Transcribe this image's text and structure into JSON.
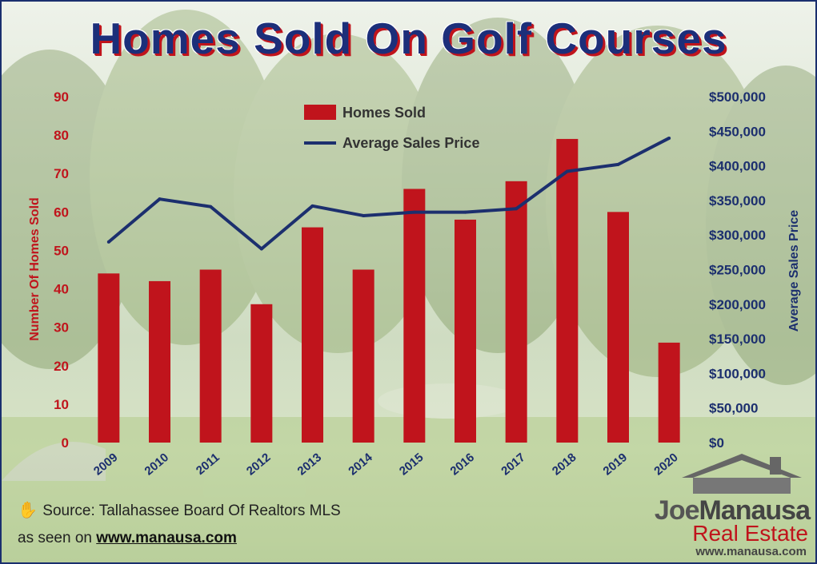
{
  "title": "Homes Sold On Golf Courses",
  "source_text": "Source: Tallahassee Board Of Realtors MLS",
  "seen_prefix": "as seen on",
  "seen_url": "www.manausa.com",
  "logo": {
    "name_part1": "Joe",
    "name_part2": "Manausa",
    "sub": "Real Estate",
    "url": "www.manausa.com"
  },
  "colors": {
    "bars": "#c0141c",
    "line": "#1c2f6e",
    "title": "#1c2f7a"
  },
  "chart_data": {
    "type": "bar",
    "categories": [
      "2009",
      "2010",
      "2011",
      "2012",
      "2013",
      "2014",
      "2015",
      "2016",
      "2017",
      "2018",
      "2019",
      "2020"
    ],
    "series": [
      {
        "name": "Homes Sold",
        "type": "bar",
        "axis": "left",
        "values": [
          44,
          42,
          45,
          36,
          56,
          45,
          66,
          58,
          68,
          79,
          60,
          26
        ]
      },
      {
        "name": "Average Sales Price",
        "type": "line",
        "axis": "right",
        "values": [
          290000,
          352000,
          341000,
          280000,
          342000,
          328000,
          333000,
          333000,
          338000,
          392000,
          402000,
          440000
        ]
      }
    ],
    "ylabel": "Number Of Homes Sold",
    "y2label": "Average Sales Price",
    "ylim": [
      0,
      90
    ],
    "y2lim": [
      0,
      500000
    ],
    "yticks": [
      "0",
      "10",
      "20",
      "30",
      "40",
      "50",
      "60",
      "70",
      "80",
      "90"
    ],
    "y2ticks": [
      "$0",
      "$50,000",
      "$100,000",
      "$150,000",
      "$200,000",
      "$250,000",
      "$300,000",
      "$350,000",
      "$400,000",
      "$450,000",
      "$500,000"
    ],
    "legend": [
      "Homes Sold",
      "Average Sales Price"
    ],
    "legend_position": "top-center",
    "grid": false
  }
}
